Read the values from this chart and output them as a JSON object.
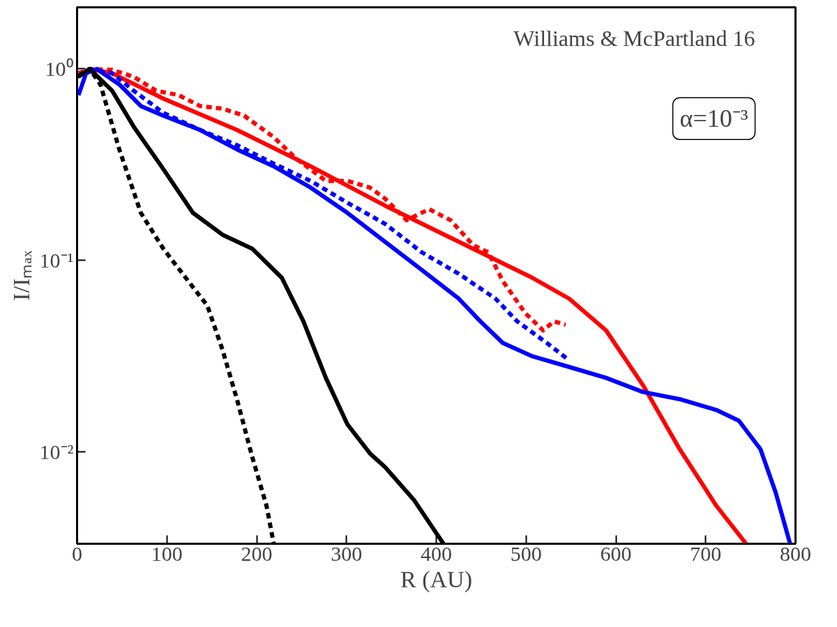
{
  "chart_data": {
    "type": "line",
    "xlabel": "R (AU)",
    "ylabel": "I/Iₘₐₓ",
    "log": "y",
    "grid": false,
    "annotations": [
      "Williams & McPartland 16",
      "α=10⁻³"
    ],
    "xlim": [
      0,
      800
    ],
    "xticks": [
      0,
      100,
      200,
      300,
      400,
      500,
      600,
      700,
      800
    ],
    "ylim": [
      0.0033,
      2.1
    ],
    "yticks": [
      {
        "value": 0.01,
        "label": "10⁻²"
      },
      {
        "value": 0.1,
        "label": "10⁻¹"
      },
      {
        "value": 1,
        "label": "10⁰"
      }
    ],
    "series": [
      {
        "color": "#ff0000",
        "line_style": "solid",
        "x": [
          14,
          39,
          96,
          178,
          260,
          343,
          425,
          507,
          548,
          589,
          630,
          671,
          712,
          745
        ],
        "values": [
          1,
          0.95,
          0.7,
          0.48,
          0.31,
          0.193,
          0.125,
          0.081,
          0.063,
          0.043,
          0.0223,
          0.0103,
          0.0052,
          0.0033
        ]
      },
      {
        "color": "#ff0000",
        "line_style": "dashed",
        "x": [
          1.6,
          14,
          39,
          63,
          88,
          113,
          137,
          162,
          186,
          219,
          244,
          277,
          301,
          326,
          343,
          367,
          392,
          416,
          441,
          458,
          474,
          499,
          519,
          531,
          544
        ],
        "values": [
          0.95,
          1,
          0.99,
          0.91,
          0.77,
          0.73,
          0.64,
          0.62,
          0.57,
          0.44,
          0.34,
          0.26,
          0.26,
          0.24,
          0.21,
          0.162,
          0.185,
          0.162,
          0.12,
          0.11,
          0.078,
          0.053,
          0.043,
          0.048,
          0.046
        ]
      },
      {
        "color": "#0000ff",
        "line_style": "solid",
        "x": [
          1.6,
          10,
          22,
          47,
          71,
          96,
          137,
          178,
          219,
          260,
          301,
          343,
          384,
          425,
          449,
          474,
          507,
          548,
          589,
          630,
          671,
          712,
          737,
          761,
          778,
          794
        ],
        "values": [
          0.73,
          0.95,
          1,
          0.83,
          0.64,
          0.57,
          0.48,
          0.38,
          0.31,
          0.24,
          0.177,
          0.125,
          0.089,
          0.063,
          0.048,
          0.037,
          0.0315,
          0.0277,
          0.0243,
          0.0205,
          0.0188,
          0.0165,
          0.0145,
          0.0103,
          0.0061,
          0.0033
        ]
      },
      {
        "color": "#0000ff",
        "line_style": "dashed",
        "x": [
          14,
          39,
          63,
          96,
          137,
          178,
          219,
          260,
          301,
          343,
          384,
          425,
          466,
          490,
          523,
          548
        ],
        "values": [
          1,
          0.95,
          0.77,
          0.59,
          0.48,
          0.4,
          0.32,
          0.26,
          0.2,
          0.155,
          0.11,
          0.085,
          0.063,
          0.048,
          0.037,
          0.03
        ]
      },
      {
        "color": "#000000",
        "line_style": "solid",
        "x": [
          0,
          14,
          39,
          63,
          96,
          129,
          162,
          195,
          228,
          252,
          277,
          301,
          326,
          343,
          375,
          408
        ],
        "values": [
          0.91,
          1,
          0.77,
          0.5,
          0.3,
          0.177,
          0.136,
          0.115,
          0.081,
          0.048,
          0.0243,
          0.0139,
          0.0098,
          0.0083,
          0.0056,
          0.0033
        ]
      },
      {
        "color": "#000000",
        "line_style": "dashed",
        "x": [
          1.6,
          14,
          26,
          47,
          71,
          96,
          121,
          145,
          162,
          178,
          195,
          211,
          219
        ],
        "values": [
          0.91,
          1,
          0.83,
          0.38,
          0.177,
          0.115,
          0.081,
          0.058,
          0.034,
          0.0188,
          0.0094,
          0.0052,
          0.0033
        ]
      }
    ]
  }
}
